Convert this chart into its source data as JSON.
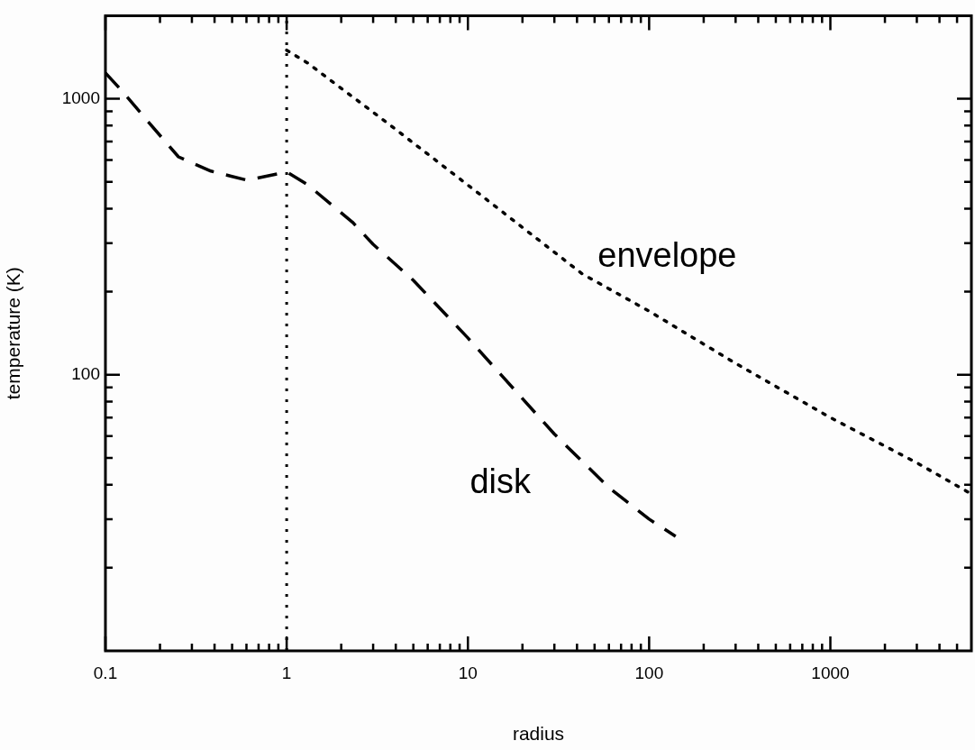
{
  "chart_data": {
    "type": "line",
    "xlabel": "radius",
    "ylabel": "temperature (K)",
    "log": "xy",
    "grid": false,
    "legend": false,
    "marker": "none",
    "xlim": [
      0.1,
      6000
    ],
    "ylim": [
      10,
      2000
    ],
    "xticks": [
      0.1,
      {
        "value": 0.2,
        "label": null
      },
      {
        "value": 0.3,
        "label": null
      },
      {
        "value": 0.4,
        "label": null
      },
      {
        "value": 0.5,
        "label": null
      },
      {
        "value": 0.6,
        "label": null
      },
      {
        "value": 0.7,
        "label": null
      },
      {
        "value": 0.8,
        "label": null
      },
      {
        "value": 0.9,
        "label": null
      },
      1,
      {
        "value": 2,
        "label": null
      },
      {
        "value": 3,
        "label": null
      },
      {
        "value": 4,
        "label": null
      },
      {
        "value": 5,
        "label": null
      },
      {
        "value": 6,
        "label": null
      },
      {
        "value": 7,
        "label": null
      },
      {
        "value": 8,
        "label": null
      },
      {
        "value": 9,
        "label": null
      },
      10,
      {
        "value": 20,
        "label": null
      },
      {
        "value": 30,
        "label": null
      },
      {
        "value": 40,
        "label": null
      },
      {
        "value": 50,
        "label": null
      },
      {
        "value": 60,
        "label": null
      },
      {
        "value": 70,
        "label": null
      },
      {
        "value": 80,
        "label": null
      },
      {
        "value": 90,
        "label": null
      },
      100,
      {
        "value": 200,
        "label": null
      },
      {
        "value": 300,
        "label": null
      },
      {
        "value": 400,
        "label": null
      },
      {
        "value": 500,
        "label": null
      },
      {
        "value": 600,
        "label": null
      },
      {
        "value": 700,
        "label": null
      },
      {
        "value": 800,
        "label": null
      },
      {
        "value": 900,
        "label": null
      },
      1000,
      {
        "value": 2000,
        "label": null
      },
      {
        "value": 3000,
        "label": null
      },
      {
        "value": 4000,
        "label": null
      },
      {
        "value": 5000,
        "label": null
      }
    ],
    "yticks": [
      {
        "value": 20,
        "label": null
      },
      {
        "value": 30,
        "label": null
      },
      {
        "value": 40,
        "label": null
      },
      {
        "value": 50,
        "label": null
      },
      {
        "value": 60,
        "label": null
      },
      {
        "value": 70,
        "label": null
      },
      {
        "value": 80,
        "label": null
      },
      {
        "value": 90,
        "label": null
      },
      100,
      {
        "value": 200,
        "label": null
      },
      {
        "value": 300,
        "label": null
      },
      {
        "value": 400,
        "label": null
      },
      {
        "value": 500,
        "label": null
      },
      {
        "value": 600,
        "label": null
      },
      {
        "value": 700,
        "label": null
      },
      {
        "value": 800,
        "label": null
      },
      {
        "value": 900,
        "label": null
      },
      1000
    ],
    "series": [
      {
        "name": "disk",
        "color": "#000000",
        "line_style": "dashed",
        "x": [
          0.1,
          0.122,
          0.171,
          0.253,
          0.382,
          0.604,
          1,
          1.3,
          2.31,
          3,
          5,
          10,
          30,
          60,
          100,
          140
        ],
        "values": [
          1240,
          1077,
          830,
          616,
          547,
          507,
          543,
          489,
          357,
          297,
          220,
          136,
          61,
          39,
          30,
          26
        ]
      },
      {
        "name": "envelope",
        "color": "#000000",
        "line_style": "dotted",
        "x": [
          1,
          1.3,
          3.65,
          10.2,
          42.8,
          100,
          300,
          1000,
          3000,
          6000
        ],
        "values": [
          1500,
          1350,
          811,
          482,
          232,
          170,
          110,
          70,
          48,
          37
        ]
      }
    ],
    "ref_lines": [
      {
        "axis": "x",
        "value": 1,
        "line_style": "dotted",
        "color": "#000000"
      }
    ]
  }
}
